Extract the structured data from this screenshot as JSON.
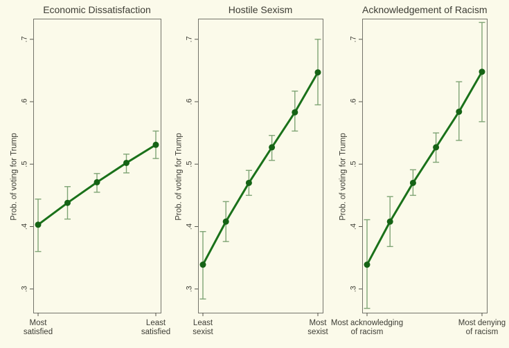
{
  "figure": {
    "background": "#FBFAEA",
    "border_color": "#73736A",
    "tick_color": "#54544B",
    "text_color": "#3C3C34",
    "line_color": "#1A711A",
    "marker_color": "#156315",
    "ci_color": "#7FA475"
  },
  "axis": {
    "ylim": [
      0.262,
      0.733
    ],
    "grid": false,
    "yticks": [
      {
        "v": 0.3,
        "label": ".3"
      },
      {
        "v": 0.4,
        "label": ".4"
      },
      {
        "v": 0.5,
        "label": ".5"
      },
      {
        "v": 0.6,
        "label": ".6"
      },
      {
        "v": 0.7,
        "label": ".7"
      }
    ]
  },
  "chart_data": [
    {
      "type": "line",
      "title": "Economic Dissatisfaction",
      "ylabel": "Prob. of voting for Trump",
      "x_end_labels": [
        [
          "Most",
          "satisfied"
        ],
        [
          "Least",
          "satisfied"
        ]
      ],
      "x": [
        1,
        2,
        3,
        4,
        5
      ],
      "points": [
        {
          "v": 0.403,
          "lo": 0.36,
          "hi": 0.444
        },
        {
          "v": 0.438,
          "lo": 0.412,
          "hi": 0.464
        },
        {
          "v": 0.471,
          "lo": 0.455,
          "hi": 0.485
        },
        {
          "v": 0.502,
          "lo": 0.486,
          "hi": 0.516
        },
        {
          "v": 0.531,
          "lo": 0.509,
          "hi": 0.553
        }
      ]
    },
    {
      "type": "line",
      "title": "Hostile Sexism",
      "ylabel": "Prob. of voting for Trump",
      "x_end_labels": [
        [
          "Least",
          "sexist"
        ],
        [
          "Most",
          "sexist"
        ]
      ],
      "x": [
        1,
        2,
        3,
        4,
        5,
        6
      ],
      "points": [
        {
          "v": 0.339,
          "lo": 0.284,
          "hi": 0.392
        },
        {
          "v": 0.408,
          "lo": 0.376,
          "hi": 0.44
        },
        {
          "v": 0.47,
          "lo": 0.45,
          "hi": 0.49
        },
        {
          "v": 0.527,
          "lo": 0.506,
          "hi": 0.546
        },
        {
          "v": 0.583,
          "lo": 0.553,
          "hi": 0.617
        },
        {
          "v": 0.647,
          "lo": 0.595,
          "hi": 0.7
        }
      ]
    },
    {
      "type": "line",
      "title": "Acknowledgement of Racism",
      "ylabel": "Prob. of voting for Trump",
      "x_end_labels": [
        [
          "Most acknowledging",
          "of racism"
        ],
        [
          "Most denying",
          "of racism"
        ]
      ],
      "x": [
        1,
        2,
        3,
        4,
        5,
        6
      ],
      "points": [
        {
          "v": 0.339,
          "lo": 0.269,
          "hi": 0.411
        },
        {
          "v": 0.408,
          "lo": 0.368,
          "hi": 0.448
        },
        {
          "v": 0.47,
          "lo": 0.45,
          "hi": 0.491
        },
        {
          "v": 0.527,
          "lo": 0.503,
          "hi": 0.55
        },
        {
          "v": 0.584,
          "lo": 0.538,
          "hi": 0.632
        },
        {
          "v": 0.648,
          "lo": 0.568,
          "hi": 0.727
        }
      ]
    }
  ]
}
